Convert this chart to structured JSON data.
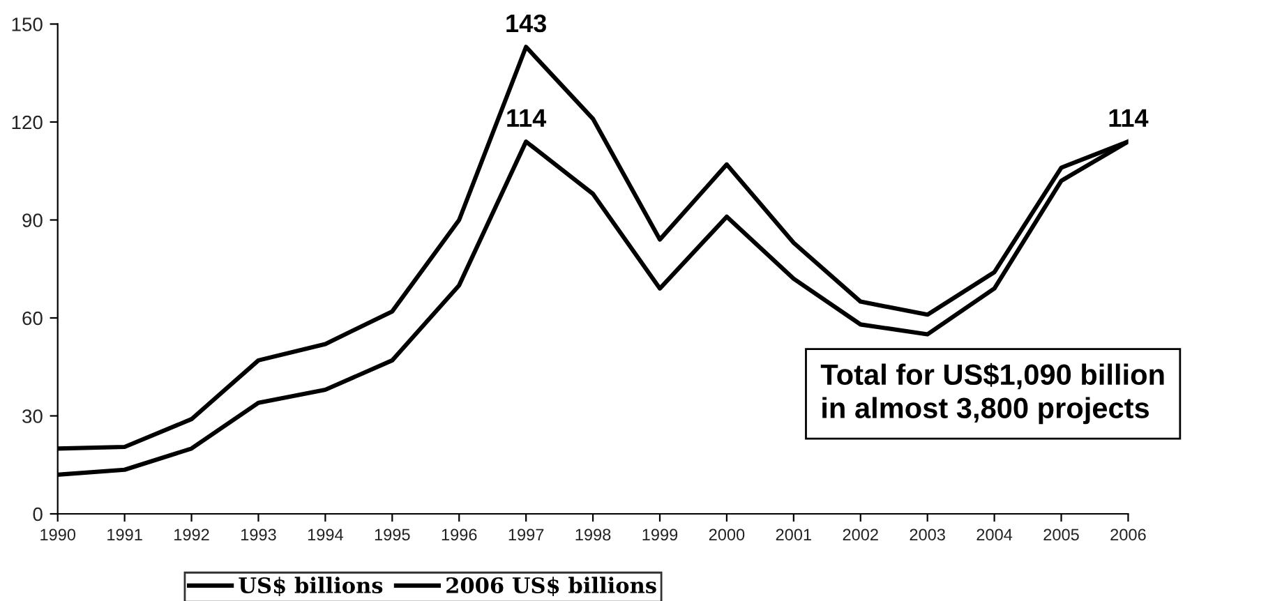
{
  "chart_data": {
    "type": "line",
    "x": [
      1990,
      1991,
      1992,
      1993,
      1994,
      1995,
      1996,
      1997,
      1998,
      1999,
      2000,
      2001,
      2002,
      2003,
      2004,
      2005,
      2006
    ],
    "series": [
      {
        "name": "US$ billions",
        "color": "#000000",
        "values": [
          12,
          13.5,
          20,
          34,
          38,
          47,
          70,
          114,
          98,
          69,
          91,
          72,
          58,
          55,
          69,
          102,
          114
        ],
        "value_labels": [
          null,
          null,
          null,
          null,
          null,
          null,
          null,
          "114",
          null,
          null,
          null,
          null,
          null,
          null,
          null,
          null,
          null
        ]
      },
      {
        "name": "2006 US$ billions",
        "color": "#000000",
        "values": [
          20,
          20.5,
          29,
          47,
          52,
          62,
          90,
          143,
          121,
          84,
          107,
          83,
          65,
          61,
          74,
          106,
          114
        ],
        "value_labels": [
          null,
          null,
          null,
          null,
          null,
          null,
          null,
          "143",
          null,
          null,
          null,
          null,
          null,
          null,
          null,
          null,
          "114"
        ]
      }
    ],
    "xlim": [
      1990,
      2006
    ],
    "xticks": [
      1990,
      1991,
      1992,
      1993,
      1994,
      1995,
      1996,
      1997,
      1998,
      1999,
      2000,
      2001,
      2002,
      2003,
      2004,
      2005,
      2006
    ],
    "ylim": [
      0,
      150
    ],
    "yticks": [
      0,
      30,
      60,
      90,
      120,
      150
    ],
    "annotations": [
      "Total for US$1,090 billion\nin almost 3,800 projects"
    ],
    "legend": "bottom",
    "grid": false,
    "marker": "none",
    "line_style": "solid"
  }
}
